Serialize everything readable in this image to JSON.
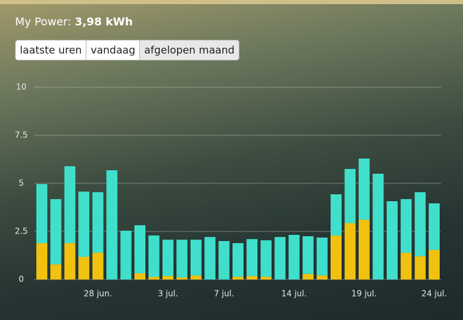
{
  "header": {
    "label": "My Power:",
    "value": "3,98 kWh"
  },
  "buttons": [
    "laatste uren",
    "vandaag",
    "afgelopen maand"
  ],
  "chart_data": {
    "type": "stacked_bar",
    "categories": [
      null,
      null,
      null,
      null,
      "28 jun.",
      null,
      null,
      null,
      null,
      "3 jul.",
      null,
      null,
      null,
      "7 jul.",
      null,
      null,
      null,
      null,
      "14 jul.",
      null,
      null,
      null,
      null,
      "19 jul.",
      null,
      null,
      null,
      null,
      "24 jul."
    ],
    "series": [
      {
        "color": "#f0c20f",
        "values": [
          1.89,
          0.79,
          1.89,
          1.18,
          1.39,
          0,
          0,
          0.32,
          0.14,
          0.18,
          0.11,
          0.21,
          0,
          0,
          0.14,
          0.18,
          0.14,
          0,
          0,
          0.29,
          0.21,
          2.29,
          2.93,
          3.11,
          0,
          0,
          1.39,
          1.21,
          1.54
        ]
      },
      {
        "color": "#40dfcc",
        "values": [
          3.07,
          3.39,
          4.0,
          3.39,
          3.15,
          5.68,
          2.54,
          2.5,
          2.15,
          1.89,
          1.96,
          1.86,
          2.21,
          2.0,
          1.75,
          1.92,
          1.9,
          2.21,
          2.32,
          1.96,
          1.97,
          2.14,
          2.82,
          3.18,
          5.5,
          4.07,
          2.79,
          3.33,
          2.42
        ]
      }
    ],
    "ylim": [
      0,
      10
    ],
    "yticks": [
      0,
      2.5,
      5,
      7.5,
      10
    ],
    "grid": true
  }
}
